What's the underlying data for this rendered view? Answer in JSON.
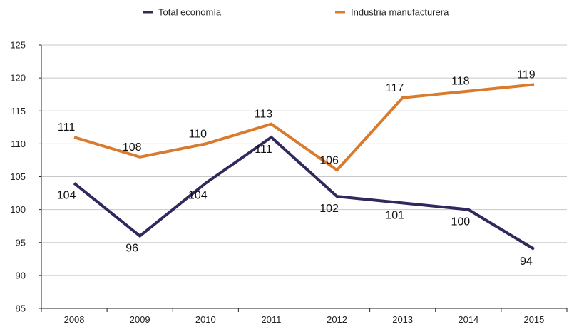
{
  "chart_data": {
    "type": "line",
    "title": "",
    "xlabel": "",
    "ylabel": "",
    "categories": [
      "2008",
      "2009",
      "2010",
      "2011",
      "2012",
      "2013",
      "2014",
      "2015"
    ],
    "ylim": [
      85,
      125
    ],
    "yticks": [
      85,
      90,
      95,
      100,
      105,
      110,
      115,
      120,
      125
    ],
    "grid": true,
    "legend_position": "top-center",
    "series": [
      {
        "name": "Total economía",
        "color": "#2e2a5e",
        "values": [
          104,
          96,
          104,
          111,
          102,
          101,
          100,
          94
        ],
        "label_side": [
          "below",
          "below",
          "below",
          "below",
          "below",
          "below",
          "below",
          "below"
        ]
      },
      {
        "name": "Industria manufacturera",
        "color": "#d97b2c",
        "values": [
          111,
          108,
          110,
          113,
          106,
          117,
          118,
          119
        ],
        "label_side": [
          "above",
          "above",
          "above",
          "above",
          "above",
          "above",
          "above",
          "above"
        ]
      }
    ]
  }
}
